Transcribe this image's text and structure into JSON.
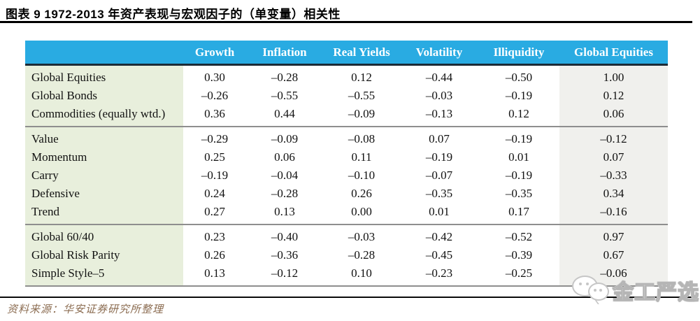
{
  "figure": {
    "title": "图表 9 1972-2013 年资产表现与宏观因子的（单变量）相关性",
    "source": "资料来源：华安证券研究所整理",
    "watermark": "金工严选"
  },
  "chart_data": {
    "type": "table",
    "columns": [
      "",
      "Growth",
      "Inflation",
      "Real Yields",
      "Volatility",
      "Illiquidity",
      "Global Equities"
    ],
    "groups": [
      {
        "rows": [
          {
            "label": "Global Equities",
            "values": [
              "0.30",
              "–0.28",
              "0.12",
              "–0.44",
              "–0.50",
              "1.00"
            ]
          },
          {
            "label": "Global Bonds",
            "values": [
              "–0.26",
              "–0.55",
              "–0.55",
              "–0.03",
              "–0.19",
              "0.12"
            ]
          },
          {
            "label": "Commodities (equally wtd.)",
            "values": [
              "0.36",
              "0.44",
              "–0.09",
              "–0.13",
              "0.12",
              "0.06"
            ]
          }
        ]
      },
      {
        "rows": [
          {
            "label": "Value",
            "values": [
              "–0.29",
              "–0.09",
              "–0.08",
              "0.07",
              "–0.19",
              "–0.12"
            ]
          },
          {
            "label": "Momentum",
            "values": [
              "0.25",
              "0.06",
              "0.11",
              "–0.19",
              "0.01",
              "0.07"
            ]
          },
          {
            "label": "Carry",
            "values": [
              "–0.19",
              "–0.04",
              "–0.10",
              "–0.07",
              "–0.19",
              "–0.33"
            ]
          },
          {
            "label": "Defensive",
            "values": [
              "0.24",
              "–0.28",
              "0.26",
              "–0.35",
              "–0.35",
              "0.34"
            ]
          },
          {
            "label": "Trend",
            "values": [
              "0.27",
              "0.13",
              "0.00",
              "0.01",
              "0.17",
              "–0.16"
            ]
          }
        ]
      },
      {
        "rows": [
          {
            "label": "Global 60/40",
            "values": [
              "0.23",
              "–0.40",
              "–0.03",
              "–0.42",
              "–0.52",
              "0.97"
            ]
          },
          {
            "label": "Global Risk Parity",
            "values": [
              "0.26",
              "–0.36",
              "–0.28",
              "–0.45",
              "–0.39",
              "0.67"
            ]
          },
          {
            "label": "Simple Style–5",
            "values": [
              "0.13",
              "–0.12",
              "0.10",
              "–0.23",
              "–0.25",
              "–0.06"
            ]
          }
        ]
      }
    ]
  },
  "colors": {
    "header_bg": "#29ABE2",
    "header_text": "#FFFFFF",
    "label_col_bg": "#E8EFDC",
    "last_col_bg": "#F0F0ED",
    "header_underline": "#1C2B36",
    "group_separator": "#8E8E8E",
    "source_text": "#8C6D52",
    "watermark_gray": "#C6C6C6"
  }
}
